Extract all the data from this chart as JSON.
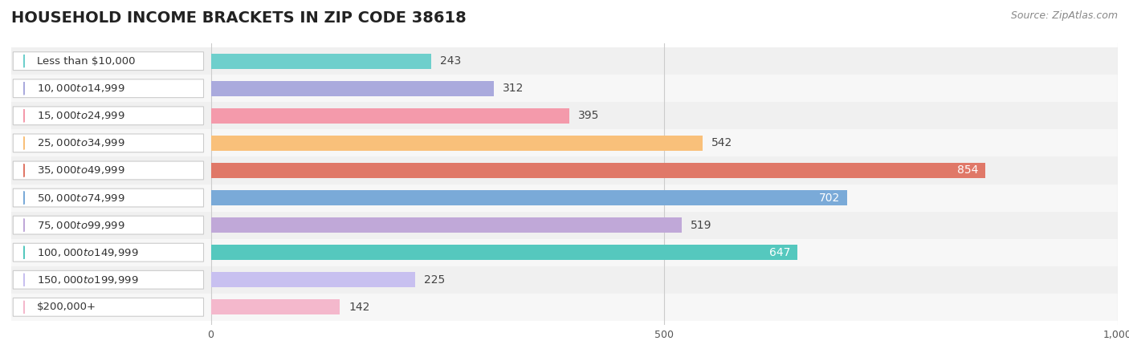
{
  "title": "HOUSEHOLD INCOME BRACKETS IN ZIP CODE 38618",
  "source": "Source: ZipAtlas.com",
  "categories": [
    "Less than $10,000",
    "$10,000 to $14,999",
    "$15,000 to $24,999",
    "$25,000 to $34,999",
    "$35,000 to $49,999",
    "$50,000 to $74,999",
    "$75,000 to $99,999",
    "$100,000 to $149,999",
    "$150,000 to $199,999",
    "$200,000+"
  ],
  "values": [
    243,
    312,
    395,
    542,
    854,
    702,
    519,
    647,
    225,
    142
  ],
  "bar_colors": [
    "#6ecfcc",
    "#aaaadd",
    "#f49aab",
    "#f9c07a",
    "#e07868",
    "#7aaad8",
    "#c0a8d8",
    "#55c8be",
    "#c8c0f0",
    "#f4b8cc"
  ],
  "label_colors": [
    "#444444",
    "#444444",
    "#444444",
    "#444444",
    "#ffffff",
    "#ffffff",
    "#444444",
    "#ffffff",
    "#444444",
    "#444444"
  ],
  "xlim": [
    0,
    1000
  ],
  "xticks": [
    0,
    500,
    1000
  ],
  "background_color": "#ffffff",
  "row_bg_color": "#eeeeee",
  "title_fontsize": 14,
  "source_fontsize": 9,
  "label_fontsize": 10,
  "cat_fontsize": 9.5,
  "bar_height": 0.55
}
